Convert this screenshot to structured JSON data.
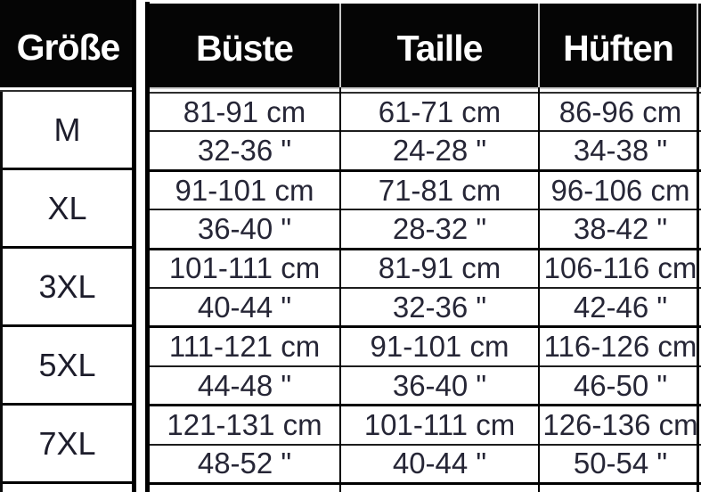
{
  "chart_data": {
    "type": "table",
    "columns": [
      "Größe",
      "Büste",
      "Taille",
      "Hüften"
    ],
    "groups": [
      {
        "size": "M",
        "cm": [
          "81-91 cm",
          "61-71 cm",
          "86-96 cm"
        ],
        "inch": [
          "32-36 \"",
          "24-28 \"",
          "34-38 \""
        ]
      },
      {
        "size": "XL",
        "cm": [
          "91-101 cm",
          "71-81 cm",
          "96-106 cm"
        ],
        "inch": [
          "36-40 \"",
          "28-32 \"",
          "38-42 \""
        ]
      },
      {
        "size": "3XL",
        "cm": [
          "101-111 cm",
          "81-91 cm",
          "106-116 cm"
        ],
        "inch": [
          "40-44 \"",
          "32-36 \"",
          "42-46 \""
        ]
      },
      {
        "size": "5XL",
        "cm": [
          "111-121 cm",
          "91-101 cm",
          "116-126 cm"
        ],
        "inch": [
          "44-48 \"",
          "36-40 \"",
          "46-50 \""
        ]
      },
      {
        "size": "7XL",
        "cm": [
          "121-131 cm",
          "101-111 cm",
          "126-136 cm"
        ],
        "inch": [
          "48-52 \"",
          "40-44 \"",
          "50-54 \""
        ]
      }
    ]
  },
  "colors": {
    "header_bg": "#050505",
    "header_text": "#ffffff",
    "body_border": "#000000",
    "header_separator": "#c8c8c8",
    "data_text": "#262636",
    "background": "#ffffff"
  }
}
